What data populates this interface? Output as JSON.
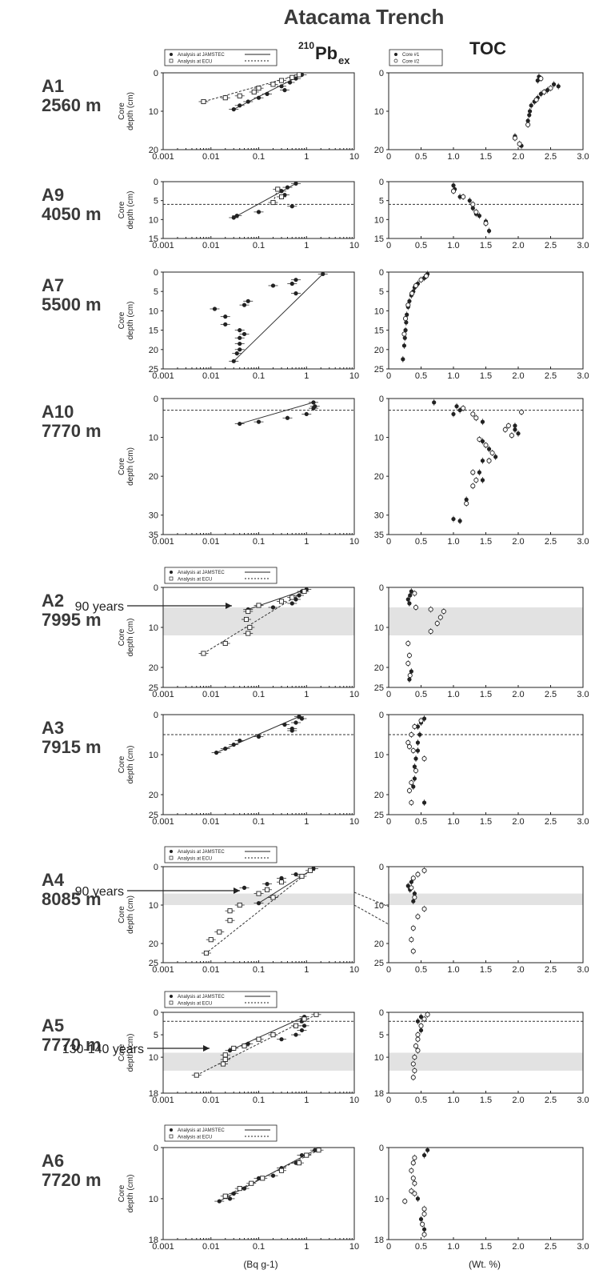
{
  "figure": {
    "title": "Atacama Trench",
    "col1_prefix": "210",
    "col1_main": "Pb",
    "col1_sub": "ex",
    "col2_title": "TOC",
    "xunit_left": "(Bq g-1)",
    "xunit_right": "(Wt. %)",
    "ylabel_line1": "Core",
    "ylabel_line2": "depth (cm)"
  },
  "legends": {
    "pb": {
      "jamstec": "Analysis at JAMSTEC",
      "ecu": "Analysis at ECU"
    },
    "toc": {
      "core1": "Core #1",
      "core2": "Core #2"
    }
  },
  "annotations": [
    {
      "text": "90 years",
      "panel": "A2"
    },
    {
      "text": "90 years",
      "panel": "A4"
    },
    {
      "text": "130-140 years",
      "panel": "A5"
    }
  ],
  "chart_data": [
    {
      "type": "scatter",
      "site": "A1",
      "depth_label": "2560 m",
      "ylim": [
        20,
        0
      ],
      "yticks": [
        0,
        10,
        20
      ],
      "pb_jamstec": [
        [
          0.8,
          0.5
        ],
        [
          0.6,
          1.5
        ],
        [
          0.45,
          2.5
        ],
        [
          0.3,
          3.5
        ],
        [
          0.35,
          4.5
        ],
        [
          0.15,
          5.5
        ],
        [
          0.1,
          6.5
        ],
        [
          0.06,
          7.5
        ],
        [
          0.04,
          8.5
        ],
        [
          0.03,
          9.5
        ]
      ],
      "pb_ecu": [
        [
          0.7,
          0.5
        ],
        [
          0.5,
          1.2
        ],
        [
          0.3,
          2
        ],
        [
          0.2,
          3
        ],
        [
          0.1,
          4
        ],
        [
          0.08,
          5
        ],
        [
          0.04,
          6
        ],
        [
          0.02,
          6.5
        ],
        [
          0.007,
          7.5
        ]
      ],
      "toc1": [
        [
          2.32,
          1
        ],
        [
          2.3,
          2
        ],
        [
          2.55,
          3
        ],
        [
          2.62,
          3.5
        ],
        [
          2.45,
          4.5
        ],
        [
          2.35,
          5.5
        ],
        [
          2.3,
          6.5
        ],
        [
          2.25,
          7.5
        ],
        [
          2.2,
          8.5
        ],
        [
          2.18,
          10
        ],
        [
          2.17,
          11
        ],
        [
          2.15,
          12.5
        ],
        [
          1.95,
          16.5
        ],
        [
          2.05,
          19
        ]
      ],
      "toc2": [
        [
          2.35,
          1.5
        ],
        [
          2.5,
          4
        ],
        [
          2.4,
          5
        ],
        [
          2.28,
          7
        ],
        [
          2.15,
          13.5
        ],
        [
          1.95,
          17
        ],
        [
          2.02,
          18.5
        ]
      ]
    },
    {
      "type": "scatter",
      "site": "A9",
      "depth_label": "4050 m",
      "ylim": [
        15,
        0
      ],
      "yticks": [
        0,
        5,
        10,
        15
      ],
      "pb_jamstec": [
        [
          0.6,
          0.5
        ],
        [
          0.4,
          1.5
        ],
        [
          0.3,
          2.5
        ],
        [
          0.35,
          3.5
        ],
        [
          0.5,
          6.5
        ],
        [
          0.1,
          8
        ],
        [
          0.035,
          9
        ],
        [
          0.03,
          9.5
        ]
      ],
      "pb_ecu": [
        [
          0.25,
          2
        ],
        [
          0.3,
          4
        ],
        [
          0.2,
          5.5
        ]
      ],
      "dashed": 6,
      "toc1": [
        [
          1.0,
          1
        ],
        [
          1.02,
          2
        ],
        [
          1.1,
          4
        ],
        [
          1.25,
          5
        ],
        [
          1.3,
          7
        ],
        [
          1.35,
          8.5
        ],
        [
          1.4,
          9
        ],
        [
          1.5,
          10.5
        ],
        [
          1.55,
          13
        ]
      ],
      "toc2": [
        [
          1.0,
          2.5
        ],
        [
          1.15,
          4
        ],
        [
          1.3,
          6
        ],
        [
          1.35,
          8
        ],
        [
          1.5,
          11
        ]
      ]
    },
    {
      "type": "scatter",
      "site": "A7",
      "depth_label": "5500 m",
      "ylim": [
        25,
        0
      ],
      "yticks": [
        0,
        5,
        10,
        15,
        20,
        25
      ],
      "pb_jamstec": [
        [
          2.2,
          0.5
        ],
        [
          0.6,
          2
        ],
        [
          0.5,
          3
        ],
        [
          0.2,
          3.5
        ],
        [
          0.6,
          5.5
        ],
        [
          0.06,
          7.5
        ],
        [
          0.05,
          8.5
        ],
        [
          0.012,
          9.5
        ],
        [
          0.02,
          11.5
        ],
        [
          0.02,
          13.5
        ],
        [
          0.04,
          15
        ],
        [
          0.05,
          16
        ],
        [
          0.04,
          17
        ],
        [
          0.04,
          18.5
        ],
        [
          0.04,
          20
        ],
        [
          0.035,
          21
        ],
        [
          0.03,
          23
        ]
      ],
      "pb_ecu": [],
      "toc1": [
        [
          0.6,
          0.5
        ],
        [
          0.55,
          1.5
        ],
        [
          0.45,
          3
        ],
        [
          0.4,
          4
        ],
        [
          0.38,
          5
        ],
        [
          0.35,
          6
        ],
        [
          0.32,
          7.5
        ],
        [
          0.3,
          9
        ],
        [
          0.28,
          11
        ],
        [
          0.27,
          13
        ],
        [
          0.26,
          15
        ],
        [
          0.25,
          17
        ],
        [
          0.24,
          19
        ],
        [
          0.22,
          22.5
        ]
      ],
      "toc2": [
        [
          0.58,
          1
        ],
        [
          0.5,
          2
        ],
        [
          0.42,
          3.5
        ],
        [
          0.36,
          5.5
        ],
        [
          0.3,
          8.5
        ],
        [
          0.26,
          12
        ],
        [
          0.24,
          16
        ]
      ]
    },
    {
      "type": "scatter",
      "site": "A10",
      "depth_label": "7770 m",
      "ylim": [
        35,
        0
      ],
      "yticks": [
        0,
        10,
        20,
        30,
        35
      ],
      "pb_jamstec": [
        [
          1.4,
          1
        ],
        [
          1.5,
          2
        ],
        [
          1.4,
          2.5
        ],
        [
          1.0,
          4
        ],
        [
          0.4,
          5
        ],
        [
          0.1,
          6
        ],
        [
          0.04,
          6.5
        ]
      ],
      "pb_ecu": [],
      "dashed": 3,
      "toc1": [
        [
          0.7,
          1
        ],
        [
          1.05,
          2
        ],
        [
          1.1,
          3
        ],
        [
          1.0,
          4
        ],
        [
          1.45,
          6
        ],
        [
          1.95,
          7
        ],
        [
          1.95,
          8
        ],
        [
          2.0,
          9
        ],
        [
          1.45,
          11
        ],
        [
          1.55,
          13
        ],
        [
          1.45,
          16
        ],
        [
          1.65,
          15
        ],
        [
          1.4,
          19
        ],
        [
          1.45,
          21
        ],
        [
          1.2,
          26
        ],
        [
          1.0,
          31
        ],
        [
          1.1,
          31.5
        ]
      ],
      "toc2": [
        [
          1.15,
          2.5
        ],
        [
          1.3,
          4
        ],
        [
          1.35,
          5
        ],
        [
          1.85,
          7
        ],
        [
          1.8,
          8
        ],
        [
          1.9,
          9.5
        ],
        [
          1.4,
          10.5
        ],
        [
          1.5,
          12
        ],
        [
          1.6,
          14
        ],
        [
          1.55,
          16
        ],
        [
          1.3,
          19
        ],
        [
          1.35,
          21
        ],
        [
          1.3,
          22.5
        ],
        [
          1.2,
          27
        ],
        [
          2.05,
          3.5
        ]
      ]
    },
    {
      "type": "scatter",
      "site": "A2",
      "depth_label": "7995 m",
      "ylim": [
        25,
        0
      ],
      "yticks": [
        0,
        10,
        20,
        25
      ],
      "pb_jamstec": [
        [
          1.0,
          0.5
        ],
        [
          0.8,
          1
        ],
        [
          0.7,
          2
        ],
        [
          0.6,
          3
        ],
        [
          0.5,
          4
        ],
        [
          0.2,
          5
        ],
        [
          0.06,
          5.5
        ]
      ],
      "pb_ecu": [
        [
          0.9,
          1
        ],
        [
          0.5,
          2.5
        ],
        [
          0.3,
          3.5
        ],
        [
          0.1,
          4.5
        ],
        [
          0.06,
          6
        ],
        [
          0.055,
          8
        ],
        [
          0.065,
          10
        ],
        [
          0.06,
          11.5
        ],
        [
          0.02,
          14
        ],
        [
          0.007,
          16.5
        ]
      ],
      "shade": [
        5,
        12
      ],
      "toc1": [
        [
          0.35,
          1
        ],
        [
          0.33,
          2
        ],
        [
          0.3,
          3
        ],
        [
          0.32,
          4
        ],
        [
          0.35,
          21
        ],
        [
          0.32,
          23
        ]
      ],
      "toc2": [
        [
          0.4,
          1.5
        ],
        [
          0.42,
          5
        ],
        [
          0.65,
          5.5
        ],
        [
          0.85,
          6
        ],
        [
          0.8,
          7.5
        ],
        [
          0.75,
          9
        ],
        [
          0.65,
          11
        ],
        [
          0.3,
          14
        ],
        [
          0.32,
          17
        ],
        [
          0.3,
          19
        ],
        [
          0.33,
          22
        ]
      ]
    },
    {
      "type": "scatter",
      "site": "A3",
      "depth_label": "7915 m",
      "ylim": [
        25,
        0
      ],
      "yticks": [
        0,
        10,
        20,
        25
      ],
      "pb_jamstec": [
        [
          0.7,
          0.5
        ],
        [
          0.8,
          1
        ],
        [
          0.6,
          2
        ],
        [
          0.35,
          2.5
        ],
        [
          0.5,
          3.5
        ],
        [
          0.5,
          4
        ],
        [
          0.1,
          5.5
        ],
        [
          0.04,
          6.5
        ],
        [
          0.03,
          7.5
        ],
        [
          0.02,
          8.5
        ],
        [
          0.013,
          9.5
        ]
      ],
      "pb_ecu": [],
      "dashed": 5,
      "toc1": [
        [
          0.55,
          1
        ],
        [
          0.5,
          2
        ],
        [
          0.45,
          3
        ],
        [
          0.48,
          5
        ],
        [
          0.45,
          7
        ],
        [
          0.45,
          9
        ],
        [
          0.42,
          11
        ],
        [
          0.4,
          13
        ],
        [
          0.4,
          16
        ],
        [
          0.38,
          18
        ],
        [
          0.55,
          22
        ]
      ],
      "toc2": [
        [
          0.5,
          1.5
        ],
        [
          0.4,
          3
        ],
        [
          0.35,
          5
        ],
        [
          0.3,
          7
        ],
        [
          0.32,
          8
        ],
        [
          0.38,
          9
        ],
        [
          0.55,
          11
        ],
        [
          0.42,
          14
        ],
        [
          0.35,
          17
        ],
        [
          0.32,
          19
        ],
        [
          0.35,
          22
        ]
      ]
    },
    {
      "type": "scatter",
      "site": "A4",
      "depth_label": "8085 m",
      "ylim": [
        25,
        0
      ],
      "yticks": [
        0,
        10,
        20,
        25
      ],
      "pb_jamstec": [
        [
          1.4,
          0.5
        ],
        [
          0.6,
          2
        ],
        [
          0.3,
          3
        ],
        [
          0.15,
          4.5
        ],
        [
          0.05,
          5.5
        ],
        [
          0.2,
          8
        ],
        [
          0.1,
          9.5
        ]
      ],
      "pb_ecu": [
        [
          1.2,
          1
        ],
        [
          0.8,
          2.5
        ],
        [
          0.3,
          4
        ],
        [
          0.15,
          6
        ],
        [
          0.1,
          7
        ],
        [
          0.2,
          8
        ],
        [
          0.04,
          10
        ],
        [
          0.025,
          11.5
        ],
        [
          0.025,
          14
        ],
        [
          0.015,
          17
        ],
        [
          0.01,
          19
        ],
        [
          0.008,
          22.5
        ]
      ],
      "shade": [
        7,
        10
      ],
      "toc1": [
        [
          0.35,
          4
        ],
        [
          0.3,
          5
        ],
        [
          0.33,
          6
        ],
        [
          0.4,
          7
        ],
        [
          0.38,
          9
        ]
      ],
      "toc2": [
        [
          0.55,
          1
        ],
        [
          0.45,
          2
        ],
        [
          0.38,
          3
        ],
        [
          0.35,
          5.5
        ],
        [
          0.4,
          8
        ],
        [
          0.55,
          11
        ],
        [
          0.45,
          13
        ],
        [
          0.38,
          16
        ],
        [
          0.35,
          19
        ],
        [
          0.38,
          22
        ]
      ]
    },
    {
      "type": "scatter",
      "site": "A5",
      "depth_label": "7770 m",
      "ylim": [
        18,
        0
      ],
      "yticks": [
        0,
        5,
        10,
        18
      ],
      "pb_jamstec": [
        [
          0.9,
          1
        ],
        [
          0.8,
          2
        ],
        [
          0.9,
          3
        ],
        [
          0.8,
          4
        ],
        [
          0.6,
          5
        ],
        [
          0.3,
          6
        ],
        [
          0.06,
          7
        ],
        [
          0.025,
          8.5
        ]
      ],
      "pb_ecu": [
        [
          1.6,
          0.5
        ],
        [
          0.9,
          1.5
        ],
        [
          0.6,
          3
        ],
        [
          0.2,
          5
        ],
        [
          0.1,
          6
        ],
        [
          0.05,
          7.5
        ],
        [
          0.03,
          8
        ],
        [
          0.02,
          9.5
        ],
        [
          0.02,
          10.5
        ],
        [
          0.018,
          11.5
        ],
        [
          0.005,
          14
        ]
      ],
      "dashed": 2,
      "shade": [
        9,
        13
      ],
      "toc1": [
        [
          0.5,
          1
        ],
        [
          0.45,
          2
        ],
        [
          0.5,
          4
        ]
      ],
      "toc2": [
        [
          0.6,
          0.5
        ],
        [
          0.55,
          1.5
        ],
        [
          0.5,
          3
        ],
        [
          0.45,
          5
        ],
        [
          0.45,
          6
        ],
        [
          0.42,
          7.5
        ],
        [
          0.45,
          8.5
        ],
        [
          0.4,
          10
        ],
        [
          0.38,
          11.5
        ],
        [
          0.4,
          13
        ],
        [
          0.38,
          14.5
        ]
      ]
    },
    {
      "type": "scatter",
      "site": "A6",
      "depth_label": "7720 m",
      "ylim": [
        18,
        0
      ],
      "yticks": [
        0,
        10,
        18
      ],
      "pb_jamstec": [
        [
          1.5,
          0.5
        ],
        [
          0.8,
          1.5
        ],
        [
          0.6,
          3
        ],
        [
          0.3,
          4
        ],
        [
          0.2,
          5.5
        ],
        [
          0.1,
          6
        ],
        [
          0.05,
          8
        ],
        [
          0.03,
          9
        ],
        [
          0.025,
          10
        ],
        [
          0.015,
          10.5
        ]
      ],
      "pb_ecu": [
        [
          1.8,
          0.5
        ],
        [
          1.0,
          1.5
        ],
        [
          0.7,
          3
        ],
        [
          0.3,
          4.5
        ],
        [
          0.12,
          6
        ],
        [
          0.07,
          7
        ],
        [
          0.04,
          8
        ],
        [
          0.02,
          9.5
        ]
      ],
      "toc1": [
        [
          0.6,
          0.5
        ],
        [
          0.55,
          1.5
        ],
        [
          0.45,
          10
        ],
        [
          0.5,
          14
        ],
        [
          0.55,
          16
        ]
      ],
      "toc2": [
        [
          0.4,
          2
        ],
        [
          0.38,
          3
        ],
        [
          0.35,
          4.5
        ],
        [
          0.38,
          6
        ],
        [
          0.4,
          7
        ],
        [
          0.35,
          8.5
        ],
        [
          0.4,
          9
        ],
        [
          0.25,
          10.5
        ],
        [
          0.55,
          12
        ],
        [
          0.55,
          13
        ],
        [
          0.52,
          15
        ],
        [
          0.55,
          17
        ]
      ]
    }
  ]
}
